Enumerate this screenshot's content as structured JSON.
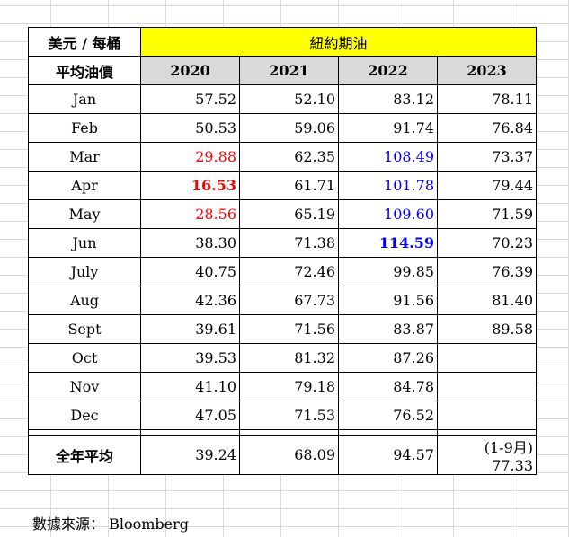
{
  "table": {
    "unit_label": "美元 / 每桶",
    "title": "紐約期油",
    "header_label": "平均油價",
    "years": [
      "2020",
      "2021",
      "2022",
      "2023"
    ],
    "rows": [
      {
        "month": "Jan",
        "values": [
          "57.52",
          "52.10",
          "83.12",
          "78.11"
        ]
      },
      {
        "month": "Feb",
        "values": [
          "50.53",
          "59.06",
          "91.74",
          "76.84"
        ]
      },
      {
        "month": "Mar",
        "values": [
          "29.88",
          "62.35",
          "108.49",
          "73.37"
        ]
      },
      {
        "month": "Apr",
        "values": [
          "16.53",
          "61.71",
          "101.78",
          "79.44"
        ]
      },
      {
        "month": "May",
        "values": [
          "28.56",
          "65.19",
          "109.60",
          "71.59"
        ]
      },
      {
        "month": "Jun",
        "values": [
          "38.30",
          "71.38",
          "114.59",
          "70.23"
        ]
      },
      {
        "month": "July",
        "values": [
          "40.75",
          "72.46",
          "99.85",
          "76.39"
        ]
      },
      {
        "month": "Aug",
        "values": [
          "42.36",
          "67.73",
          "91.56",
          "81.40"
        ]
      },
      {
        "month": "Sept",
        "values": [
          "39.61",
          "71.56",
          "83.87",
          "89.58"
        ]
      },
      {
        "month": "Oct",
        "values": [
          "39.53",
          "81.32",
          "87.26",
          ""
        ]
      },
      {
        "month": "Nov",
        "values": [
          "41.10",
          "79.18",
          "84.78",
          ""
        ]
      },
      {
        "month": "Dec",
        "values": [
          "47.05",
          "71.53",
          "76.52",
          ""
        ]
      }
    ],
    "annual_label": "全年平均",
    "annual_values": [
      "39.24",
      "68.09",
      "94.57",
      "(1-9月) 77.33"
    ]
  },
  "colors": {
    "title_bg": "#ffff00",
    "header_bg": "#d9d9d9",
    "low_highlight": "#ff0000",
    "high_highlight": "#0000ff"
  },
  "source": "數據來源：  Bloomberg"
}
